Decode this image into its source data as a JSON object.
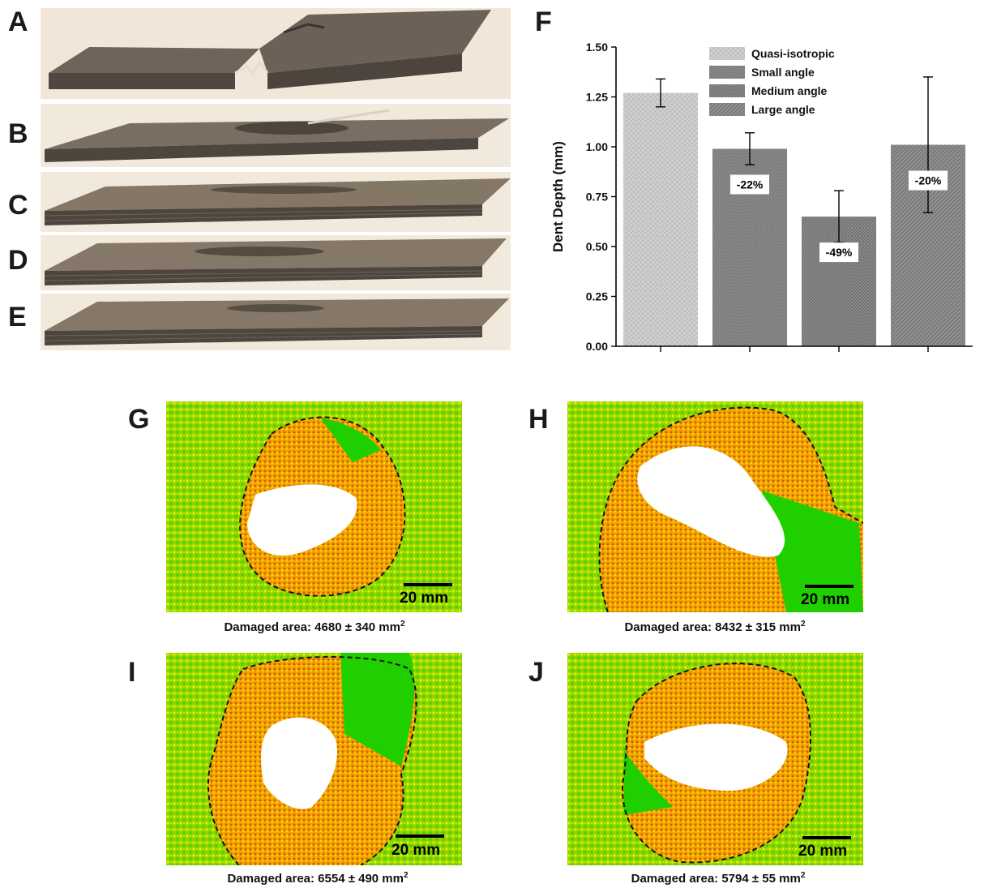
{
  "panels": {
    "A": "A",
    "B": "B",
    "C": "C",
    "D": "D",
    "E": "E",
    "F": "F",
    "G": "G",
    "H": "H",
    "I": "I",
    "J": "J"
  },
  "chart_data": {
    "type": "bar",
    "categories": [
      "Quasi-isotropic",
      "Small angle",
      "Medium angle",
      "Large angle"
    ],
    "values": [
      1.27,
      0.99,
      0.65,
      1.01
    ],
    "errors": [
      0.07,
      0.08,
      0.13,
      0.34
    ],
    "bar_labels": [
      "",
      "-22%",
      "-49%",
      "-20%"
    ],
    "legend": [
      "Quasi-isotropic",
      "Small angle",
      "Medium angle",
      "Large angle"
    ],
    "ylabel": "Dent Depth (mm)",
    "ylim": [
      0,
      1.5
    ],
    "yticks": [
      "0.00",
      "0.25",
      "0.50",
      "0.75",
      "1.00",
      "1.25",
      "1.50"
    ],
    "legend_position": "top-right",
    "grid": false,
    "colors": [
      "#c6c6c6",
      "#8a8a8a",
      "#7d7d7d",
      "#8e8e8e"
    ]
  },
  "damage_maps": [
    {
      "scale": "20 mm",
      "caption_prefix": "Damaged area: ",
      "caption_value": "4680 ± 340 mm",
      "caption_sup": "2"
    },
    {
      "scale": "20 mm",
      "caption_prefix": "Damaged area: ",
      "caption_value": "8432 ± 315 mm",
      "caption_sup": "2"
    },
    {
      "scale": "20 mm",
      "caption_prefix": "Damaged area: ",
      "caption_value": "6554 ± 490 mm",
      "caption_sup": "2"
    },
    {
      "scale": "20 mm",
      "caption_prefix": "Damaged area: ",
      "caption_value": "5794 ± 55 mm",
      "caption_sup": "2"
    }
  ]
}
